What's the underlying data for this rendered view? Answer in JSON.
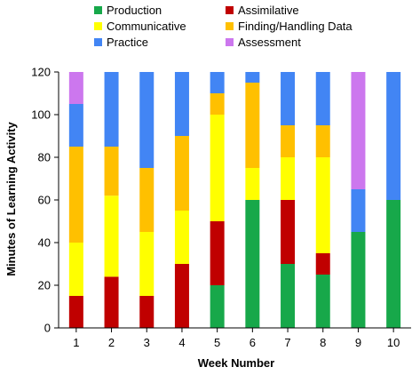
{
  "chart_data": {
    "type": "bar",
    "stacked": true,
    "xlabel": "Week Number",
    "ylabel": "Minutes of Learning Activity",
    "ylim": [
      0,
      120
    ],
    "yticks": [
      0,
      20,
      40,
      60,
      80,
      100,
      120
    ],
    "categories": [
      "1",
      "2",
      "3",
      "4",
      "5",
      "6",
      "7",
      "8",
      "9",
      "10"
    ],
    "legend_position": "top",
    "series": [
      {
        "name": "Production",
        "color": "#17a84a",
        "values": [
          0,
          0,
          0,
          0,
          20,
          60,
          30,
          25,
          45,
          60
        ]
      },
      {
        "name": "Assimilative",
        "color": "#c00000",
        "values": [
          15,
          24,
          15,
          30,
          30,
          0,
          30,
          10,
          0,
          0
        ]
      },
      {
        "name": "Communicative",
        "color": "#ffff00",
        "values": [
          25,
          38,
          30,
          25,
          50,
          15,
          20,
          45,
          0,
          0
        ]
      },
      {
        "name": "Finding/Handling Data",
        "color": "#ffc000",
        "values": [
          45,
          23,
          30,
          35,
          10,
          40,
          15,
          15,
          0,
          0
        ]
      },
      {
        "name": "Practice",
        "color": "#4285f4",
        "values": [
          20,
          35,
          45,
          30,
          10,
          5,
          25,
          25,
          20,
          60
        ]
      },
      {
        "name": "Assessment",
        "color": "#cc77ee",
        "values": [
          15,
          0,
          0,
          0,
          0,
          0,
          0,
          0,
          55,
          0
        ]
      }
    ]
  }
}
